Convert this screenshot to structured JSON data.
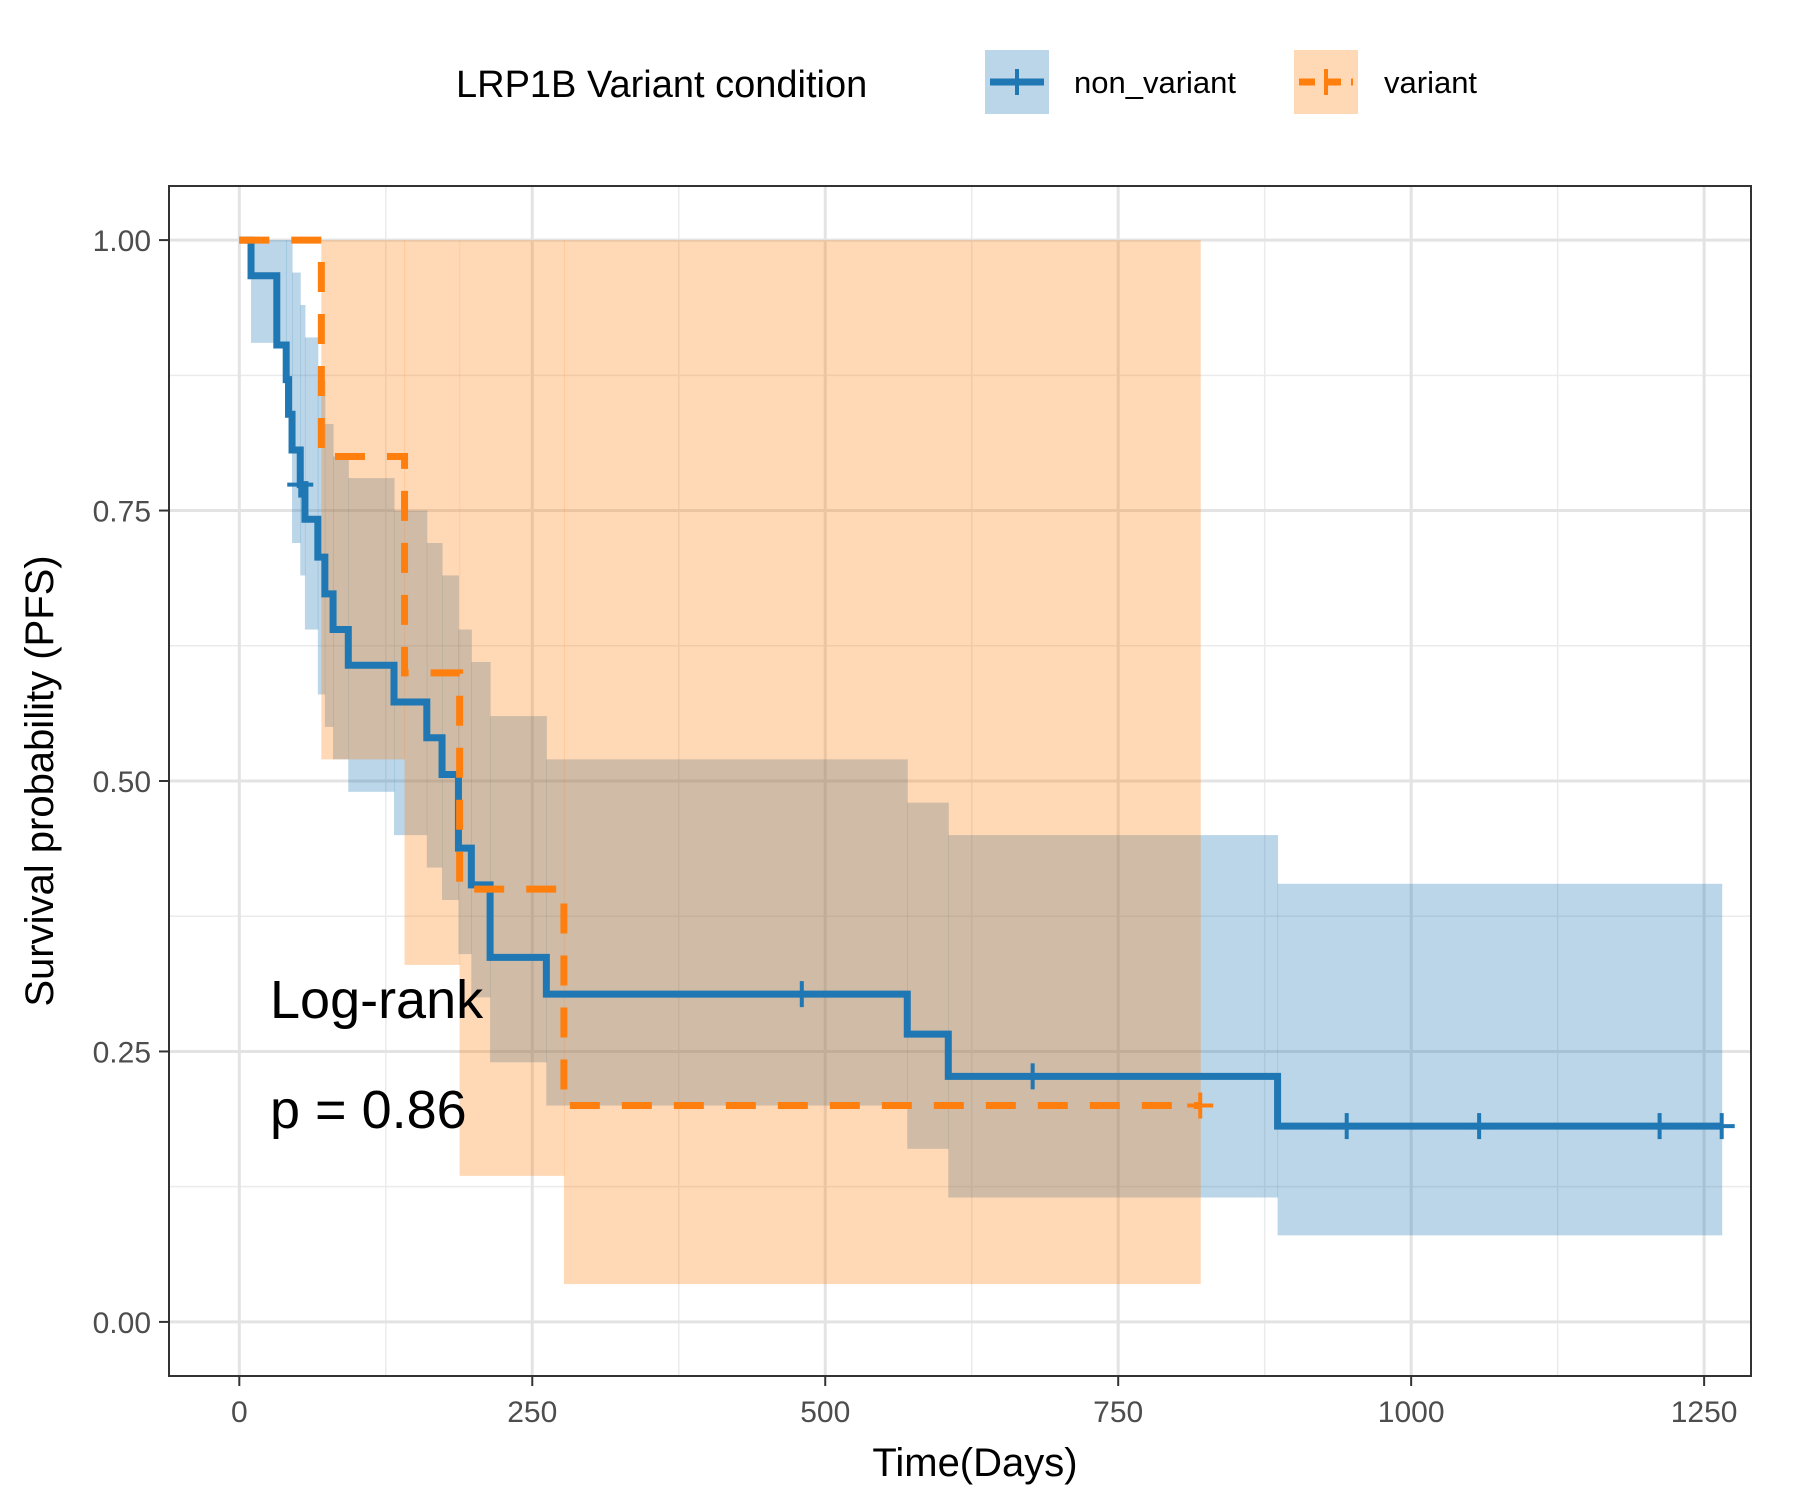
{
  "legend": {
    "title": "LRP1B Variant condition",
    "items": [
      {
        "label": "non_variant",
        "color": "#1f77b4",
        "fill": "#1f77b4"
      },
      {
        "label": "variant",
        "color": "#ff7f0e",
        "fill": "#ff7f0e"
      }
    ]
  },
  "chart_data": {
    "type": "line",
    "subtype": "kaplan-meier",
    "xlabel": "Time(Days)",
    "ylabel": "Survival probability (PFS)",
    "xlim": [
      -60,
      1290
    ],
    "ylim": [
      -0.05,
      1.05
    ],
    "xticks": [
      0,
      250,
      500,
      750,
      1000,
      1250
    ],
    "xtick_labels": [
      "0",
      "250",
      "500",
      "750",
      "1000",
      "1250"
    ],
    "yticks": [
      0,
      0.25,
      0.5,
      0.75,
      1.0
    ],
    "ytick_labels": [
      "0.00",
      "0.25",
      "0.50",
      "0.75",
      "1.00"
    ],
    "grid": true,
    "legend_position": "top",
    "annotation": {
      "line1": "Log-rank",
      "line2": "p = 0.86"
    },
    "series": [
      {
        "name": "non_variant",
        "color": "#1f77b4",
        "dash": false,
        "steps": [
          [
            0,
            1.0
          ],
          [
            10,
            0.967
          ],
          [
            32,
            0.903
          ],
          [
            40,
            0.871
          ],
          [
            42,
            0.839
          ],
          [
            45,
            0.806
          ],
          [
            52,
            0.774
          ],
          [
            56,
            0.742
          ],
          [
            67,
            0.707
          ],
          [
            73,
            0.673
          ],
          [
            80,
            0.64
          ],
          [
            93,
            0.607
          ],
          [
            132,
            0.573
          ],
          [
            160,
            0.54
          ],
          [
            173,
            0.506
          ],
          [
            187,
            0.438
          ],
          [
            198,
            0.404
          ],
          [
            214,
            0.337
          ],
          [
            262,
            0.303
          ],
          [
            570,
            0.266
          ],
          [
            605,
            0.227
          ],
          [
            886,
            0.181
          ],
          [
            1265,
            0.181
          ]
        ],
        "censor": [
          [
            52,
            0.774
          ],
          [
            480,
            0.303
          ],
          [
            677,
            0.227
          ],
          [
            945,
            0.181
          ],
          [
            1058,
            0.181
          ],
          [
            1212,
            0.181
          ],
          [
            1265,
            0.181
          ]
        ],
        "ci": [
          [
            0,
            1.0,
            1.0
          ],
          [
            10,
            1.0,
            0.905
          ],
          [
            40,
            1.0,
            0.84
          ],
          [
            45,
            0.97,
            0.72
          ],
          [
            52,
            0.94,
            0.69
          ],
          [
            56,
            0.91,
            0.64
          ],
          [
            67,
            0.87,
            0.58
          ],
          [
            73,
            0.83,
            0.55
          ],
          [
            80,
            0.8,
            0.52
          ],
          [
            93,
            0.78,
            0.49
          ],
          [
            132,
            0.75,
            0.45
          ],
          [
            160,
            0.72,
            0.42
          ],
          [
            173,
            0.69,
            0.39
          ],
          [
            187,
            0.64,
            0.34
          ],
          [
            198,
            0.61,
            0.3
          ],
          [
            214,
            0.56,
            0.24
          ],
          [
            262,
            0.52,
            0.2
          ],
          [
            570,
            0.48,
            0.16
          ],
          [
            605,
            0.45,
            0.115
          ],
          [
            886,
            0.405,
            0.08
          ],
          [
            1265,
            0.405,
            0.08
          ]
        ]
      },
      {
        "name": "variant",
        "color": "#ff7f0e",
        "dash": true,
        "steps": [
          [
            0,
            1.0
          ],
          [
            70,
            0.8
          ],
          [
            141,
            0.6
          ],
          [
            188,
            0.4
          ],
          [
            277,
            0.2
          ],
          [
            820,
            0.2
          ]
        ],
        "censor": [
          [
            820,
            0.2
          ]
        ],
        "ci": [
          [
            0,
            1.0,
            1.0
          ],
          [
            70,
            1.0,
            0.52
          ],
          [
            141,
            1.0,
            0.33
          ],
          [
            188,
            1.0,
            0.135
          ],
          [
            277,
            1.0,
            0.035
          ],
          [
            820,
            1.0,
            0.035
          ]
        ]
      }
    ]
  }
}
